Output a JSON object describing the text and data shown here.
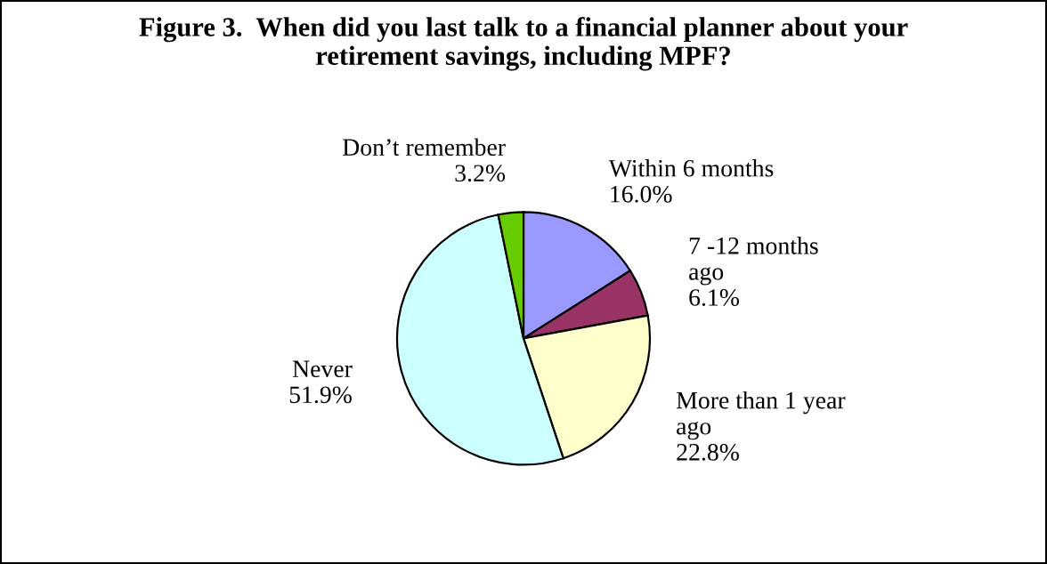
{
  "chart_data": {
    "type": "pie",
    "title": "Figure 3.  When did you last talk to a financial planner about your\nretirement savings, including MPF?",
    "categories": [
      "Within 6 months",
      "7 -12 months\nago",
      "More than 1 year\nago",
      "Never",
      "Don’t remember"
    ],
    "values": [
      16.0,
      6.1,
      22.8,
      51.9,
      3.2
    ],
    "colors": [
      "#9999ff",
      "#993366",
      "#ffffcc",
      "#ccffff",
      "#66cc00"
    ],
    "value_labels": [
      "16.0%",
      "6.1%",
      "22.8%",
      "51.9%",
      "3.2%"
    ]
  }
}
